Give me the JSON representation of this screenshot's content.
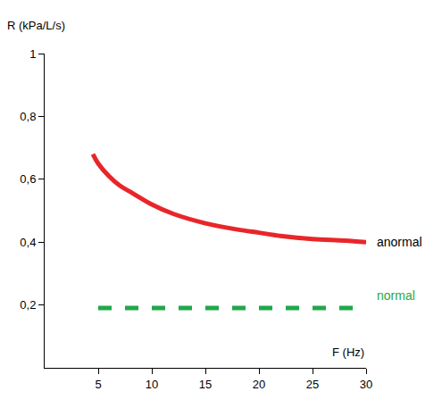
{
  "chart_data": {
    "type": "line",
    "x_label": "F (Hz)",
    "y_label": "R (kPa/L/s)",
    "series": [
      {
        "name": "anormal",
        "color": "#e8262a",
        "line_style": "solid",
        "x": [
          4.5,
          5,
          6,
          7,
          8,
          10,
          12,
          15,
          18,
          20,
          22,
          25,
          28,
          30
        ],
        "values": [
          0.68,
          0.65,
          0.61,
          0.58,
          0.56,
          0.52,
          0.49,
          0.46,
          0.44,
          0.43,
          0.42,
          0.41,
          0.405,
          0.4
        ]
      },
      {
        "name": "normal",
        "color": "#1fa84a",
        "line_style": "dashed",
        "x": [
          5,
          30
        ],
        "values": [
          0.19,
          0.19
        ]
      }
    ],
    "xlim": [
      0,
      30
    ],
    "ylim": [
      0,
      1
    ],
    "xticks": [
      5,
      10,
      15,
      20,
      25,
      30
    ],
    "yticks": [
      {
        "value": 0.2,
        "label": "0,2"
      },
      {
        "value": 0.4,
        "label": "0,4"
      },
      {
        "value": 0.6,
        "label": "0,6"
      },
      {
        "value": 0.8,
        "label": "0,8"
      },
      1
    ],
    "grid": false
  }
}
